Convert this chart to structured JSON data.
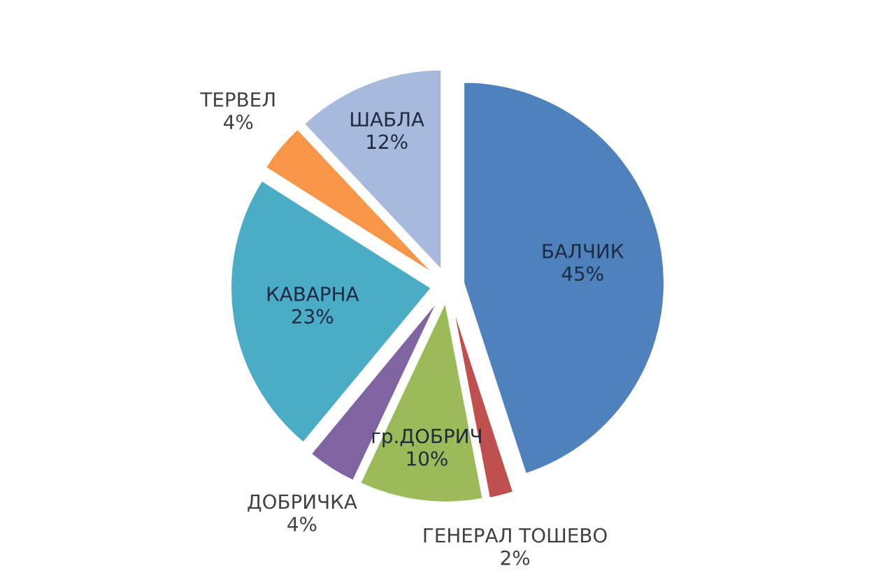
{
  "chart_data": {
    "type": "pie",
    "categories": [
      "БАЛЧИК",
      "ГЕНЕРАЛ ТОШЕВО",
      "гр.ДОБРИЧ",
      "ДОБРИЧКА",
      "КАВАРНА",
      "ТЕРВЕЛ",
      "ШАБЛА"
    ],
    "values": [
      45,
      2,
      10,
      4,
      23,
      4,
      12
    ],
    "value_labels": [
      "45%",
      "2%",
      "10%",
      "4%",
      "23%",
      "4%",
      "12%"
    ],
    "colors": [
      "#4f81bd",
      "#c0504d",
      "#9bbb59",
      "#8064a2",
      "#4bacc6",
      "#f79646",
      "#a7b9dd"
    ]
  }
}
